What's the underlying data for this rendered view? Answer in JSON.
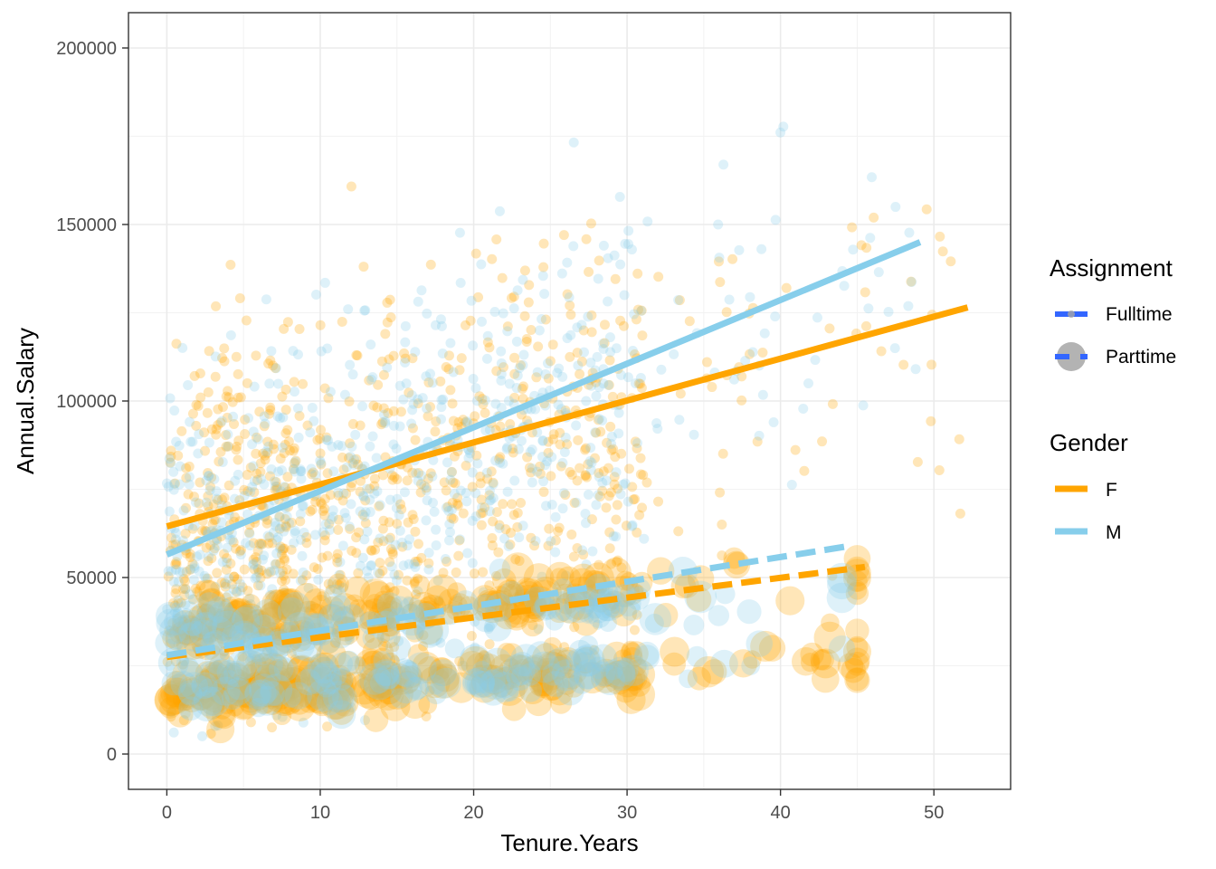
{
  "chart_data": {
    "type": "scatter",
    "xlabel": "Tenure.Years",
    "ylabel": "Annual.Salary",
    "xlim": [
      -2.5,
      55
    ],
    "ylim": [
      -10000,
      210000
    ],
    "x_ticks": [
      0,
      10,
      20,
      30,
      40,
      50
    ],
    "y_ticks": [
      0,
      50000,
      100000,
      150000,
      200000
    ],
    "x_tick_labels": [
      "0",
      "10",
      "20",
      "30",
      "40",
      "50"
    ],
    "y_tick_labels": [
      "0",
      "50000",
      "100000",
      "150000",
      "200000"
    ],
    "grid": true,
    "legend_position": "right",
    "legends": [
      {
        "title": "Assignment",
        "entries": [
          {
            "label": "Fulltime",
            "linetype": "solid",
            "point_size": "small"
          },
          {
            "label": "Parttime",
            "linetype": "dashed",
            "point_size": "large"
          }
        ]
      },
      {
        "title": "Gender",
        "entries": [
          {
            "label": "F",
            "color": "#FFA500"
          },
          {
            "label": "M",
            "color": "#87CEEB"
          }
        ]
      }
    ],
    "colors": {
      "F": "#FFA500",
      "M": "#87CEEB",
      "legend_key_line": "#3366FF",
      "legend_key_point": "#A6A6A6"
    },
    "series": [
      {
        "gender": "F",
        "assignment": "Fulltime",
        "point_cloud": {
          "x_range": [
            0,
            52
          ],
          "y_center": [
            60000,
            120000
          ],
          "y_spread": 30000
        }
      },
      {
        "gender": "M",
        "assignment": "Fulltime",
        "point_cloud": {
          "x_range": [
            0,
            49
          ],
          "y_center": [
            50000,
            135000
          ],
          "y_spread": 30000
        }
      },
      {
        "gender": "F",
        "assignment": "Parttime",
        "point_cloud": {
          "x_range": [
            0,
            45
          ],
          "bands": [
            [
              15000,
              32000
            ],
            [
              32000,
              60000
            ]
          ]
        }
      },
      {
        "gender": "M",
        "assignment": "Parttime",
        "point_cloud": {
          "x_range": [
            0,
            44
          ],
          "bands": [
            [
              18000,
              30000
            ],
            [
              30000,
              55000
            ]
          ]
        }
      }
    ],
    "trend_lines": [
      {
        "gender": "F",
        "assignment": "Fulltime",
        "linetype": "solid",
        "x": [
          0,
          52.2
        ],
        "y": [
          64500,
          126500
        ]
      },
      {
        "gender": "M",
        "assignment": "Fulltime",
        "linetype": "solid",
        "x": [
          0,
          49.1
        ],
        "y": [
          56500,
          145000
        ]
      },
      {
        "gender": "F",
        "assignment": "Parttime",
        "linetype": "dashed",
        "x": [
          0,
          45.5
        ],
        "y": [
          27500,
          53000
        ]
      },
      {
        "gender": "M",
        "assignment": "Parttime",
        "linetype": "dashed",
        "x": [
          0,
          44.6
        ],
        "y": [
          28000,
          59000
        ]
      }
    ]
  }
}
